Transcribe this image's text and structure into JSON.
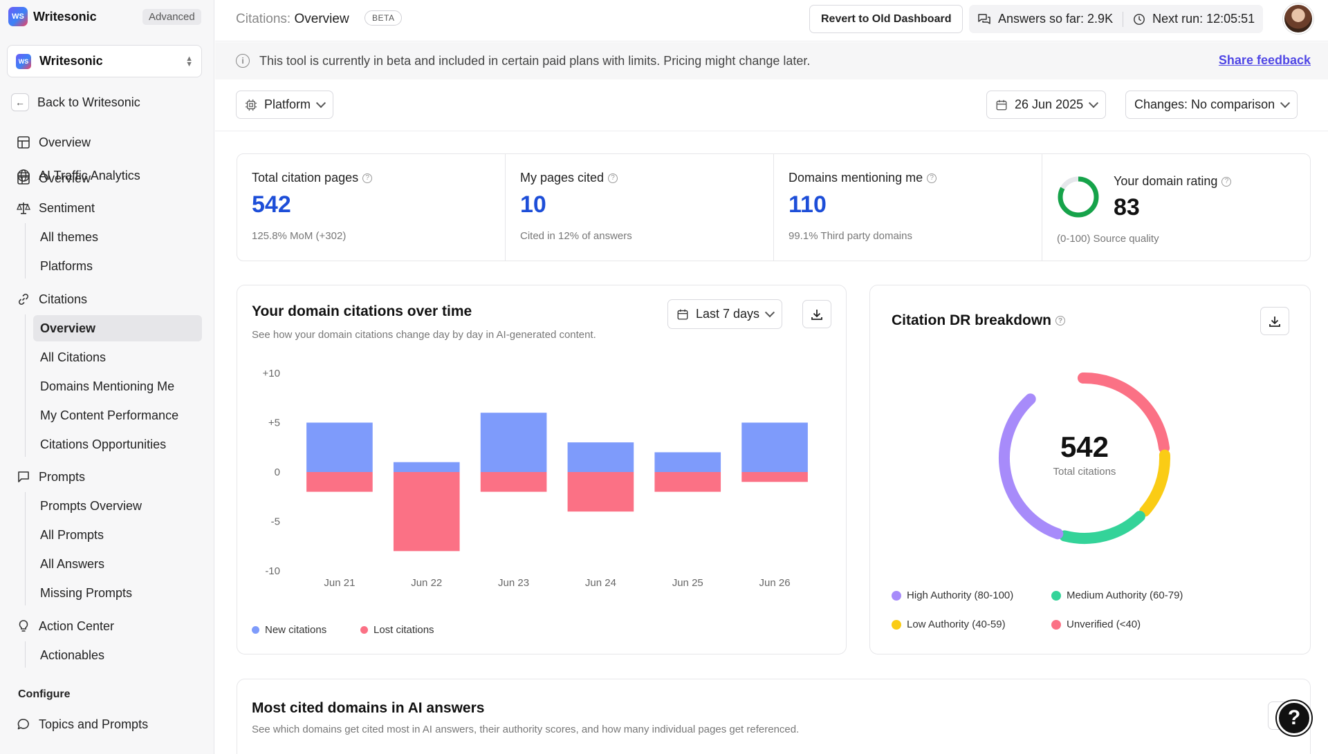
{
  "sidebar": {
    "brand": "Writesonic",
    "logo_text": "WS",
    "plan": "Advanced",
    "workspace": "Writesonic",
    "back": "Back to Writesonic",
    "items": {
      "overview": "Overview",
      "ai_traffic": "AI Traffic Analytics",
      "sentiment": "Sentiment",
      "all_themes": "All themes",
      "platforms": "Platforms",
      "citations": "Citations",
      "citations_overview": "Overview",
      "all_citations": "All Citations",
      "domains_mentioning": "Domains Mentioning Me",
      "content_performance": "My Content Performance",
      "citations_opportunities": "Citations Opportunities",
      "prompts": "Prompts",
      "prompts_overview": "Prompts Overview",
      "all_prompts": "All Prompts",
      "all_answers": "All Answers",
      "missing_prompts": "Missing Prompts",
      "action_center": "Action Center",
      "actionables": "Actionables",
      "configure": "Configure",
      "topics_prompts": "Topics and Prompts"
    }
  },
  "topbar": {
    "crumb_prefix": "Citations:",
    "crumb_page": "Overview",
    "beta": "BETA",
    "revert": "Revert to Old Dashboard",
    "answers": "Answers so far: 2.9K",
    "next_run": "Next run: 12:05:51"
  },
  "banner": {
    "message": "This tool is currently in beta and included in certain paid plans with limits. Pricing might change later.",
    "feedback": "Share feedback"
  },
  "filters": {
    "platform": "Platform",
    "date": "26 Jun 2025",
    "changes": "Changes: No comparison"
  },
  "stats": [
    {
      "title": "Total citation pages",
      "value": "542",
      "sub": "125.8% MoM (+302)"
    },
    {
      "title": "My pages cited",
      "value": "10",
      "sub": "Cited in 12% of answers"
    },
    {
      "title": "Domains mentioning me",
      "value": "110",
      "sub": "99.1% Third party domains"
    },
    {
      "title": "Your domain rating",
      "value": "83",
      "sub": "(0-100) Source quality",
      "rating_fraction": 0.83
    }
  ],
  "citations_chart": {
    "title": "Your domain citations over time",
    "subtitle": "See how your domain citations change day by day in AI-generated content.",
    "range": "Last 7 days",
    "legend_new": "New citations",
    "legend_lost": "Lost citations"
  },
  "chart_data": {
    "type": "bar",
    "categories": [
      "Jun 21",
      "Jun 22",
      "Jun 23",
      "Jun 24",
      "Jun 25",
      "Jun 26"
    ],
    "series": [
      {
        "name": "New citations",
        "values": [
          5,
          1,
          6,
          3,
          2,
          5
        ],
        "color": "#7e9bfb"
      },
      {
        "name": "Lost citations",
        "values": [
          -2,
          -8,
          -2,
          -4,
          -2,
          -1
        ],
        "color": "#fb7185"
      }
    ],
    "ylim": [
      -10,
      10
    ],
    "yticks": [
      "+10",
      "+5",
      "0",
      "-5",
      "-10"
    ],
    "ytick_values": [
      10,
      5,
      0,
      -5,
      -10
    ],
    "grid": false
  },
  "dr_breakdown": {
    "title": "Citation DR breakdown",
    "total": "542",
    "total_label": "Total citations",
    "segments": [
      {
        "name": "High Authority (80-100)",
        "color": "#a78bfa",
        "share": 0.35
      },
      {
        "name": "Medium Authority (60-79)",
        "color": "#34d399",
        "share": 0.2
      },
      {
        "name": "Low Authority (40-59)",
        "color": "#facc15",
        "share": 0.15
      },
      {
        "name": "Unverified (<40)",
        "color": "#fb7185",
        "share": 0.2
      }
    ]
  },
  "domains_card": {
    "title": "Most cited domains in AI answers",
    "subtitle": "See which domains get cited most in AI answers, their authority scores, and how many individual pages get referenced."
  },
  "colors": {
    "accent": "#1d4ed8",
    "link": "#4f46e5",
    "ring": "#16a34a"
  }
}
